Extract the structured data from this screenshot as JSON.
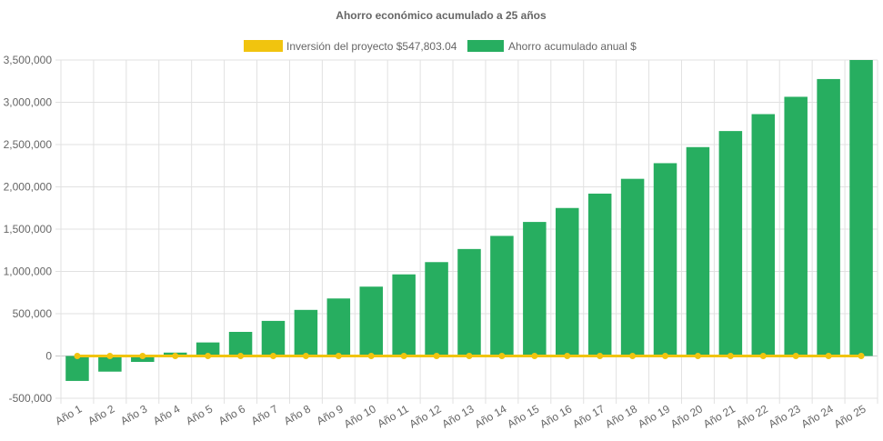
{
  "chart_data": {
    "type": "bar",
    "title": "Ahorro económico acumulado a 25 años",
    "categories": [
      "Año 1",
      "Año 2",
      "Año 3",
      "Año 4",
      "Año 5",
      "Año 6",
      "Año 7",
      "Año 8",
      "Año 9",
      "Año 10",
      "Año 11",
      "Año 12",
      "Año 13",
      "Año 14",
      "Año 15",
      "Año 16",
      "Año 17",
      "Año 18",
      "Año 19",
      "Año 20",
      "Año 21",
      "Año 22",
      "Año 23",
      "Año 24",
      "Año 25"
    ],
    "series": [
      {
        "name": "Inversión del proyecto $547,803.04",
        "type": "line",
        "color": "#f1c40f",
        "values": [
          0,
          0,
          0,
          0,
          0,
          0,
          0,
          0,
          0,
          0,
          0,
          0,
          0,
          0,
          0,
          0,
          0,
          0,
          0,
          0,
          0,
          0,
          0,
          0,
          0
        ]
      },
      {
        "name": "Ahorro acumulado anual $",
        "type": "bar",
        "color": "#27ae60",
        "values": [
          -295000,
          -185000,
          -70000,
          40000,
          160000,
          285000,
          415000,
          545000,
          680000,
          820000,
          965000,
          1110000,
          1265000,
          1420000,
          1585000,
          1750000,
          1920000,
          2095000,
          2280000,
          2470000,
          2660000,
          2860000,
          3065000,
          3275000,
          3500000
        ]
      }
    ],
    "ylim": [
      -500000,
      3500000
    ],
    "yticks": [
      "3,500,000",
      "3,000,000",
      "2,500,000",
      "2,000,000",
      "1,500,000",
      "1,000,000",
      "500,000",
      "0",
      "-500,000"
    ],
    "ytick_values": [
      3500000,
      3000000,
      2500000,
      2000000,
      1500000,
      1000000,
      500000,
      0,
      -500000
    ],
    "grid": true,
    "legend_position": "top"
  }
}
